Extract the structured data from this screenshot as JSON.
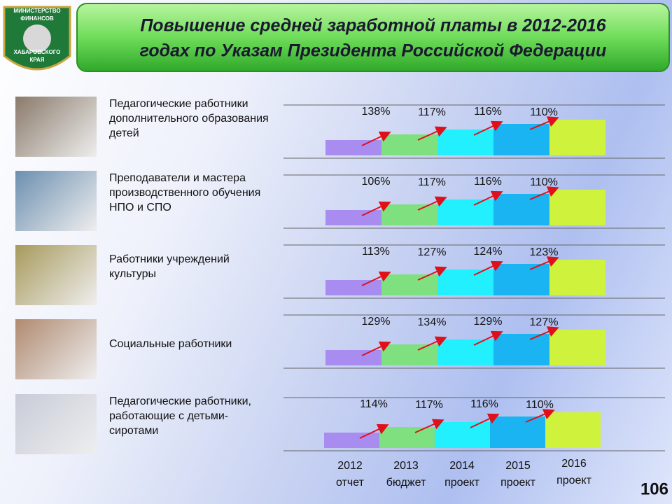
{
  "header": {
    "title_line1": "Повышение средней заработной платы в 2012-2016",
    "title_line2": "годах по Указам Президента Российской Федерации",
    "logo": [
      "МИНИСТЕРСТВО",
      "ФИНАНСОВ",
      "ХАБАРОВСКОГО",
      "КРАЯ"
    ]
  },
  "rows": [
    {
      "label": "Педагогические работники дополнительного образования детей",
      "growth": [
        "138%",
        "117%",
        "116%",
        "110%"
      ]
    },
    {
      "label": "Преподаватели и мастера производственного обучения НПО и СПО",
      "growth": [
        "106%",
        "117%",
        "116%",
        "110%"
      ]
    },
    {
      "label": "Работники учреждений культуры",
      "growth": [
        "113%",
        "127%",
        "124%",
        "123%"
      ]
    },
    {
      "label": "Социальные работники",
      "growth": [
        "129%",
        "134%",
        "129%",
        "127%"
      ]
    },
    {
      "label": "Педагогические работники, работающие с детьми-сиротами",
      "growth": [
        "114%",
        "117%",
        "116%",
        "110%"
      ]
    }
  ],
  "years": [
    {
      "year": "2012",
      "note": "отчет"
    },
    {
      "year": "2013",
      "note": "бюджет"
    },
    {
      "year": "2014",
      "note": "проект"
    },
    {
      "year": "2015",
      "note": "проект"
    },
    {
      "year": "2016",
      "note": "проект"
    }
  ],
  "page_number": "106"
}
